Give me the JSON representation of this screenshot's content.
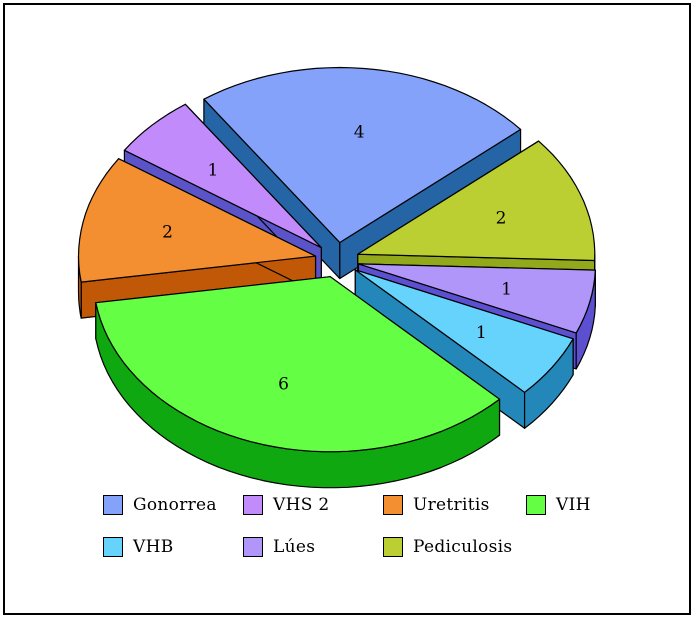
{
  "chart_data": {
    "type": "pie",
    "style": "3d-exploded",
    "title": "",
    "legend_position": "bottom",
    "categories": [
      "Gonorrea",
      "Pediculosis",
      "Lúes",
      "VHB",
      "VIH",
      "Uretritis",
      "VHS 2"
    ],
    "values": [
      4,
      2,
      1,
      1,
      6,
      2,
      1
    ],
    "colors": {
      "Gonorrea": {
        "top": "#85A2FA",
        "side": "#2565A6"
      },
      "Pediculosis": {
        "top": "#BBCF33",
        "side": "#92A91C"
      },
      "Lúes": {
        "top": "#B096F9",
        "side": "#5C50D0"
      },
      "VHB": {
        "top": "#65D3FC",
        "side": "#2387B9"
      },
      "VIH": {
        "top": "#64FF44",
        "side": "#10A810"
      },
      "Uretritis": {
        "top": "#F38F30",
        "side": "#C05808"
      },
      "VHS 2": {
        "top": "#C18BFB",
        "side": "#5B54C8"
      }
    }
  },
  "legend": [
    {
      "label": "Gonorrea",
      "color": "#85A2FA"
    },
    {
      "label": "VHS 2",
      "color": "#C18BFB"
    },
    {
      "label": "Uretritis",
      "color": "#F38F30"
    },
    {
      "label": "VIH",
      "color": "#64FF44"
    },
    {
      "label": "VHB",
      "color": "#65D3FC"
    },
    {
      "label": "Lúes",
      "color": "#B096F9"
    },
    {
      "label": "Pediculosis",
      "color": "#BBCF33"
    }
  ]
}
